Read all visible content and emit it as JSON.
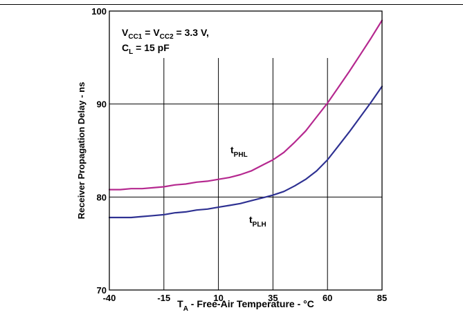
{
  "chart_data": {
    "type": "line",
    "xlabel": "T",
    "xlabel_sub": "A",
    "xlabel_rest": " - Free-Air Temperature - °C",
    "ylabel": "Receiver Propagation Delay - ns",
    "xlim": [
      -40,
      85
    ],
    "ylim": [
      70,
      100
    ],
    "x_ticks": [
      -40,
      -15,
      10,
      35,
      60,
      85
    ],
    "y_ticks": [
      70,
      80,
      90,
      100
    ],
    "x_tick_labels": [
      "-40",
      "-15",
      "10",
      "35",
      "60",
      "85"
    ],
    "y_tick_labels": [
      "70",
      "80",
      "90",
      "100"
    ],
    "grid": true,
    "annotation": {
      "line1": {
        "a": "V",
        "a_sub": "CC1",
        "b": " = V",
        "b_sub": "CC2",
        "c": " = 3.3 V,"
      },
      "line2": {
        "a": "C",
        "a_sub": "L",
        "b": " = 15 pF"
      }
    },
    "series": [
      {
        "name": "PHL",
        "label_main": "t",
        "label_sub": "PHL",
        "color": "#b5288f",
        "x": [
          -40,
          -35,
          -30,
          -25,
          -20,
          -15,
          -10,
          -5,
          0,
          5,
          10,
          15,
          20,
          25,
          30,
          35,
          40,
          45,
          50,
          55,
          60,
          65,
          70,
          75,
          80,
          85
        ],
        "y": [
          80.8,
          80.8,
          80.9,
          80.9,
          81.0,
          81.1,
          81.3,
          81.4,
          81.6,
          81.7,
          81.9,
          82.1,
          82.4,
          82.8,
          83.4,
          84.0,
          84.8,
          85.9,
          87.1,
          88.6,
          90.1,
          91.8,
          93.5,
          95.3,
          97.1,
          99.0
        ]
      },
      {
        "name": "PLH",
        "label_main": "t",
        "label_sub": "PLH",
        "color": "#2e3192",
        "x": [
          -40,
          -35,
          -30,
          -25,
          -20,
          -15,
          -10,
          -5,
          0,
          5,
          10,
          15,
          20,
          25,
          30,
          35,
          40,
          45,
          50,
          55,
          60,
          65,
          70,
          75,
          80,
          85
        ],
        "y": [
          77.8,
          77.8,
          77.8,
          77.9,
          78.0,
          78.1,
          78.3,
          78.4,
          78.6,
          78.7,
          78.9,
          79.1,
          79.3,
          79.6,
          79.9,
          80.2,
          80.6,
          81.2,
          81.9,
          82.8,
          84.0,
          85.5,
          87.0,
          88.6,
          90.2,
          91.9
        ]
      }
    ]
  }
}
